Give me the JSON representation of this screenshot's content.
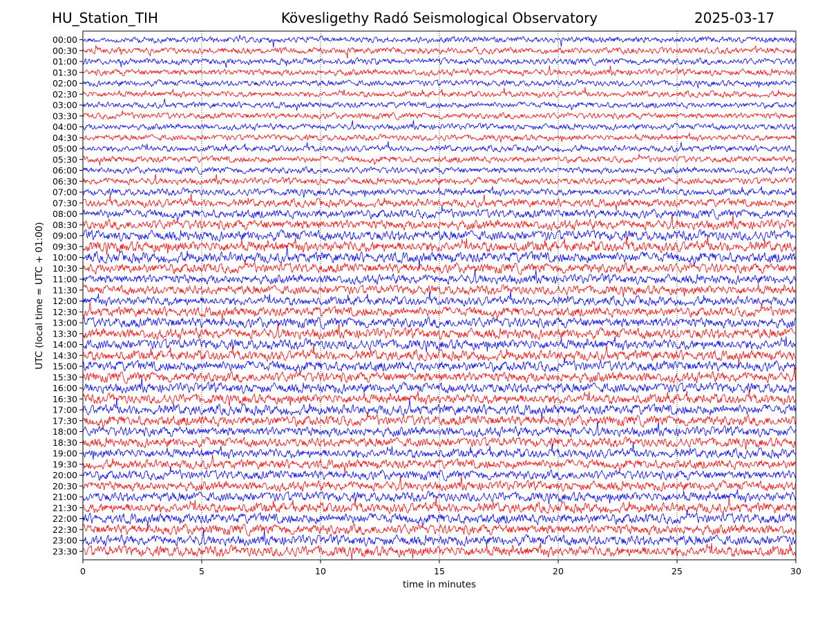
{
  "header": {
    "station": "HU_Station_TIH",
    "observatory": "Kövesligethy Radó Seismological Observatory",
    "date": "2025-03-17"
  },
  "chart_data": {
    "type": "line",
    "xlabel": "time in minutes",
    "ylabel": "UTC (local time = UTC + 01:00)",
    "xlim": [
      0,
      30
    ],
    "xticks": [
      0,
      5,
      10,
      15,
      20,
      25,
      30
    ],
    "grid": "vertical dotted lines at x ticks",
    "rows": [
      "00:00",
      "00:30",
      "01:00",
      "01:30",
      "02:00",
      "02:30",
      "03:00",
      "03:30",
      "04:00",
      "04:30",
      "05:00",
      "05:30",
      "06:00",
      "06:30",
      "07:00",
      "07:30",
      "08:00",
      "08:30",
      "09:00",
      "09:30",
      "10:00",
      "10:30",
      "11:00",
      "11:30",
      "12:00",
      "12:30",
      "13:00",
      "13:30",
      "14:00",
      "14:30",
      "15:00",
      "15:30",
      "16:00",
      "16:30",
      "17:00",
      "17:30",
      "18:00",
      "18:30",
      "19:00",
      "19:30",
      "20:00",
      "20:30",
      "21:00",
      "21:30",
      "22:00",
      "22:30",
      "23:00",
      "23:30"
    ],
    "row_colors": [
      "#0000ff",
      "#ff0000"
    ],
    "relative_amplitude": [
      0.22,
      0.24,
      0.24,
      0.26,
      0.22,
      0.2,
      0.2,
      0.22,
      0.22,
      0.2,
      0.22,
      0.24,
      0.26,
      0.28,
      0.32,
      0.42,
      0.5,
      0.6,
      0.65,
      0.7,
      0.7,
      0.62,
      0.56,
      0.55,
      0.52,
      0.58,
      0.66,
      0.68,
      0.66,
      0.64,
      0.66,
      0.66,
      0.64,
      0.62,
      0.65,
      0.66,
      0.6,
      0.58,
      0.56,
      0.55,
      0.56,
      0.58,
      0.6,
      0.64,
      0.66,
      0.66,
      0.66,
      0.7
    ]
  }
}
